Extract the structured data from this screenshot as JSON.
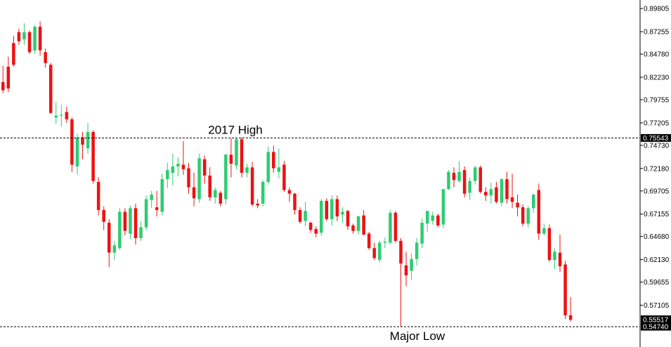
{
  "colors": {
    "bullish": "#2ecc71",
    "bearish": "#ee1111",
    "axis": "#000000",
    "reference_line": "#000000",
    "badge_bg": "#000000",
    "badge_text": "#ffffff",
    "background": "#ffffff"
  },
  "chart_data": {
    "type": "candlestick",
    "title": "",
    "xlabel": "",
    "ylabel": "",
    "ylim": [
      0.5436,
      0.9036
    ],
    "y_axis_side": "right",
    "grid": false,
    "legend": "none",
    "y_ticks": [
      "0.89805",
      "0.87255",
      "0.84780",
      "0.82230",
      "0.79755",
      "0.77205",
      "0.74730",
      "0.72180",
      "0.69705",
      "0.67155",
      "0.64680",
      "0.62130",
      "0.59655",
      "0.57105"
    ],
    "levels": [
      {
        "label": "2017 High",
        "value": 0.75543,
        "badge": "0.75543",
        "label_position": "above"
      },
      {
        "label": "Major Low",
        "value": 0.5474,
        "badge": "0.54740",
        "label_position": "below"
      }
    ],
    "last_price_badge": {
      "text": "0.55517",
      "value": 0.55517
    },
    "candles": [
      [
        0.817,
        0.835,
        0.805,
        0.808
      ],
      [
        0.834,
        0.845,
        0.806,
        0.81
      ],
      [
        0.86,
        0.868,
        0.834,
        0.836
      ],
      [
        0.872,
        0.876,
        0.858,
        0.862
      ],
      [
        0.864,
        0.882,
        0.858,
        0.872
      ],
      [
        0.872,
        0.874,
        0.848,
        0.85
      ],
      [
        0.852,
        0.88,
        0.848,
        0.878
      ],
      [
        0.878,
        0.884,
        0.846,
        0.852
      ],
      [
        0.85,
        0.854,
        0.833,
        0.838
      ],
      [
        0.836,
        0.838,
        0.782,
        0.783
      ],
      [
        0.778,
        0.795,
        0.771,
        0.78
      ],
      [
        0.78,
        0.792,
        0.768,
        0.781
      ],
      [
        0.784,
        0.79,
        0.772,
        0.776
      ],
      [
        0.776,
        0.778,
        0.718,
        0.726
      ],
      [
        0.724,
        0.76,
        0.715,
        0.756
      ],
      [
        0.756,
        0.762,
        0.732,
        0.748
      ],
      [
        0.744,
        0.772,
        0.738,
        0.762
      ],
      [
        0.762,
        0.764,
        0.705,
        0.708
      ],
      [
        0.707,
        0.712,
        0.67,
        0.676
      ],
      [
        0.676,
        0.68,
        0.654,
        0.663
      ],
      [
        0.662,
        0.666,
        0.613,
        0.629
      ],
      [
        0.629,
        0.642,
        0.621,
        0.637
      ],
      [
        0.634,
        0.678,
        0.632,
        0.674
      ],
      [
        0.674,
        0.678,
        0.648,
        0.653
      ],
      [
        0.65,
        0.681,
        0.644,
        0.678
      ],
      [
        0.678,
        0.683,
        0.638,
        0.645
      ],
      [
        0.645,
        0.664,
        0.642,
        0.657
      ],
      [
        0.657,
        0.692,
        0.654,
        0.688
      ],
      [
        0.687,
        0.697,
        0.678,
        0.693
      ],
      [
        0.679,
        0.697,
        0.669,
        0.676
      ],
      [
        0.674,
        0.716,
        0.67,
        0.71
      ],
      [
        0.71,
        0.728,
        0.7,
        0.72
      ],
      [
        0.717,
        0.738,
        0.703,
        0.724
      ],
      [
        0.724,
        0.734,
        0.713,
        0.727
      ],
      [
        0.726,
        0.752,
        0.715,
        0.721
      ],
      [
        0.722,
        0.728,
        0.694,
        0.701
      ],
      [
        0.701,
        0.717,
        0.68,
        0.689
      ],
      [
        0.688,
        0.738,
        0.684,
        0.733
      ],
      [
        0.732,
        0.736,
        0.705,
        0.714
      ],
      [
        0.714,
        0.723,
        0.686,
        0.69
      ],
      [
        0.69,
        0.701,
        0.683,
        0.698
      ],
      [
        0.695,
        0.697,
        0.68,
        0.683
      ],
      [
        0.688,
        0.738,
        0.682,
        0.737
      ],
      [
        0.737,
        0.755,
        0.712,
        0.727
      ],
      [
        0.725,
        0.755,
        0.721,
        0.754
      ],
      [
        0.754,
        0.756,
        0.712,
        0.717
      ],
      [
        0.717,
        0.727,
        0.712,
        0.723
      ],
      [
        0.723,
        0.729,
        0.68,
        0.682
      ],
      [
        0.683,
        0.688,
        0.678,
        0.681
      ],
      [
        0.683,
        0.709,
        0.68,
        0.707
      ],
      [
        0.707,
        0.746,
        0.704,
        0.74
      ],
      [
        0.74,
        0.747,
        0.717,
        0.722
      ],
      [
        0.718,
        0.744,
        0.711,
        0.723
      ],
      [
        0.726,
        0.73,
        0.696,
        0.698
      ],
      [
        0.698,
        0.701,
        0.685,
        0.694
      ],
      [
        0.694,
        0.695,
        0.671,
        0.676
      ],
      [
        0.676,
        0.679,
        0.661,
        0.663
      ],
      [
        0.664,
        0.685,
        0.658,
        0.675
      ],
      [
        0.662,
        0.663,
        0.651,
        0.654
      ],
      [
        0.655,
        0.658,
        0.646,
        0.65
      ],
      [
        0.651,
        0.688,
        0.648,
        0.686
      ],
      [
        0.686,
        0.689,
        0.664,
        0.666
      ],
      [
        0.666,
        0.692,
        0.659,
        0.688
      ],
      [
        0.688,
        0.692,
        0.664,
        0.669
      ],
      [
        0.671,
        0.679,
        0.662,
        0.674
      ],
      [
        0.675,
        0.676,
        0.654,
        0.658
      ],
      [
        0.659,
        0.661,
        0.65,
        0.653
      ],
      [
        0.653,
        0.67,
        0.649,
        0.669
      ],
      [
        0.67,
        0.676,
        0.648,
        0.649
      ],
      [
        0.65,
        0.652,
        0.632,
        0.634
      ],
      [
        0.634,
        0.64,
        0.621,
        0.623
      ],
      [
        0.621,
        0.642,
        0.618,
        0.64
      ],
      [
        0.64,
        0.646,
        0.634,
        0.641
      ],
      [
        0.64,
        0.676,
        0.638,
        0.673
      ],
      [
        0.673,
        0.675,
        0.64,
        0.642
      ],
      [
        0.642,
        0.645,
        0.5474,
        0.617
      ],
      [
        0.615,
        0.63,
        0.592,
        0.604
      ],
      [
        0.609,
        0.628,
        0.599,
        0.622
      ],
      [
        0.622,
        0.645,
        0.615,
        0.64
      ],
      [
        0.639,
        0.667,
        0.634,
        0.662
      ],
      [
        0.661,
        0.675,
        0.652,
        0.675
      ],
      [
        0.664,
        0.674,
        0.66,
        0.67
      ],
      [
        0.67,
        0.672,
        0.657,
        0.659
      ],
      [
        0.66,
        0.699,
        0.656,
        0.699
      ],
      [
        0.699,
        0.72,
        0.698,
        0.718
      ],
      [
        0.717,
        0.723,
        0.701,
        0.709
      ],
      [
        0.708,
        0.73,
        0.706,
        0.718
      ],
      [
        0.72,
        0.724,
        0.69,
        0.694
      ],
      [
        0.695,
        0.712,
        0.687,
        0.708
      ],
      [
        0.708,
        0.725,
        0.704,
        0.723
      ],
      [
        0.723,
        0.725,
        0.694,
        0.696
      ],
      [
        0.696,
        0.701,
        0.686,
        0.692
      ],
      [
        0.692,
        0.706,
        0.683,
        0.699
      ],
      [
        0.701,
        0.707,
        0.683,
        0.685
      ],
      [
        0.684,
        0.711,
        0.68,
        0.71
      ],
      [
        0.71,
        0.718,
        0.683,
        0.688
      ],
      [
        0.69,
        0.716,
        0.678,
        0.685
      ],
      [
        0.684,
        0.693,
        0.669,
        0.679
      ],
      [
        0.679,
        0.682,
        0.658,
        0.661
      ],
      [
        0.661,
        0.68,
        0.657,
        0.678
      ],
      [
        0.678,
        0.694,
        0.673,
        0.693
      ],
      [
        0.698,
        0.705,
        0.643,
        0.65
      ],
      [
        0.65,
        0.661,
        0.648,
        0.656
      ],
      [
        0.656,
        0.66,
        0.619,
        0.621
      ],
      [
        0.621,
        0.634,
        0.611,
        0.63
      ],
      [
        0.629,
        0.649,
        0.608,
        0.614
      ],
      [
        0.616,
        0.62,
        0.556,
        0.56
      ],
      [
        0.56,
        0.58,
        0.553,
        0.555
      ]
    ]
  }
}
